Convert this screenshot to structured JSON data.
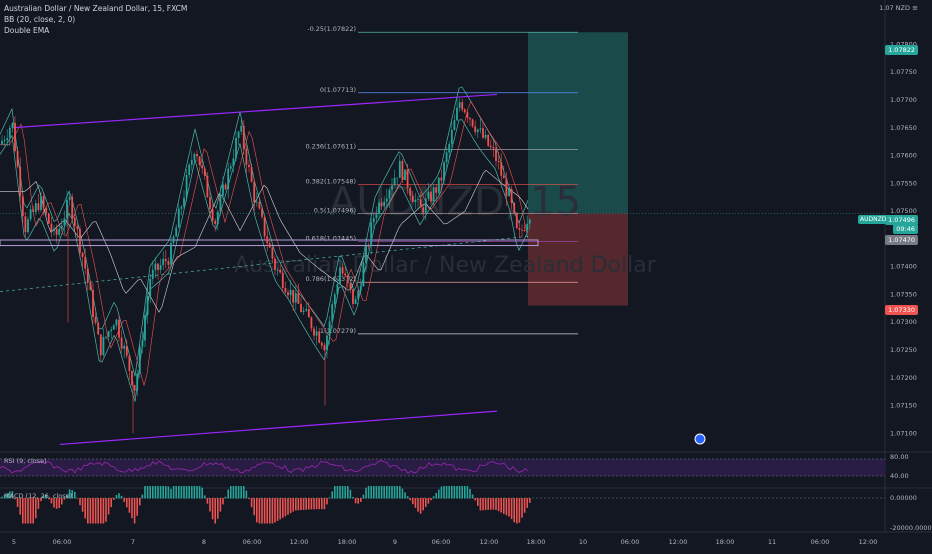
{
  "header": {
    "title": "Australian Dollar / New Zealand Dollar, 15, FXCM",
    "indicator_bb": "BB (20, close, 2, 0)",
    "indicator_ema": "Double EMA",
    "currency": "1.07 NZD"
  },
  "watermark": {
    "symbol": "AUDNZD, 15",
    "name": "Australian Dollar / New Zealand Dollar"
  },
  "price_axis": {
    "ticks": [
      "1.07800",
      "1.07750",
      "1.07700",
      "1.07650",
      "1.07600",
      "1.07550",
      "1.07500",
      "1.07400",
      "1.07350",
      "1.07300",
      "1.07250",
      "1.07200",
      "1.07150",
      "1.07100"
    ],
    "target_price": "1.07822",
    "symbol_tag": "AUDNZD",
    "current_price": "1.07496",
    "countdown": "09:46",
    "ema_price": "1.07470",
    "stop_price": "1.07330"
  },
  "fibonacci": [
    {
      "label": "-0.25(1.07822)",
      "color": "#4db6ac"
    },
    {
      "label": "0(1.07713)",
      "color": "#5b8cff"
    },
    {
      "label": "0.236(1.07611)",
      "color": "#b2b5be"
    },
    {
      "label": "0.382(1.07548)",
      "color": "#ef5350"
    },
    {
      "label": "0.5(1.07496)",
      "color": "#ef9a9a"
    },
    {
      "label": "0.618(1.07445)",
      "color": "#ab47bc"
    },
    {
      "label": "0.786(1.07372)",
      "color": "#ef9a9a"
    },
    {
      "label": "1(1.07279)",
      "color": "#d1d4dc"
    }
  ],
  "rsi_pane": {
    "label": "RSI (9, close)",
    "ticks": [
      "80.00",
      "40.00"
    ]
  },
  "macd_pane": {
    "label": "MACD (12, 26, close)",
    "ticks": [
      "0.00000",
      "-20000.00000"
    ]
  },
  "time_axis": [
    "5",
    "06:00",
    "7",
    "8",
    "06:00",
    "12:00",
    "18:00",
    "9",
    "06:00",
    "12:00",
    "18:00",
    "10",
    "06:00",
    "12:00",
    "18:00",
    "11",
    "06:00",
    "12:00"
  ],
  "colors": {
    "up": "#26a69a",
    "down": "#ef5350",
    "channel": "#9c27ff",
    "bb": "#4db6ac"
  },
  "chart_data": {
    "type": "candlestick",
    "symbol": "AUDNZD",
    "ylim": [
      1.0707,
      1.0788
    ],
    "trend_channel": {
      "upper": [
        1.0765,
        1.0771
      ],
      "lower": [
        1.0708,
        1.0714
      ]
    }
  }
}
